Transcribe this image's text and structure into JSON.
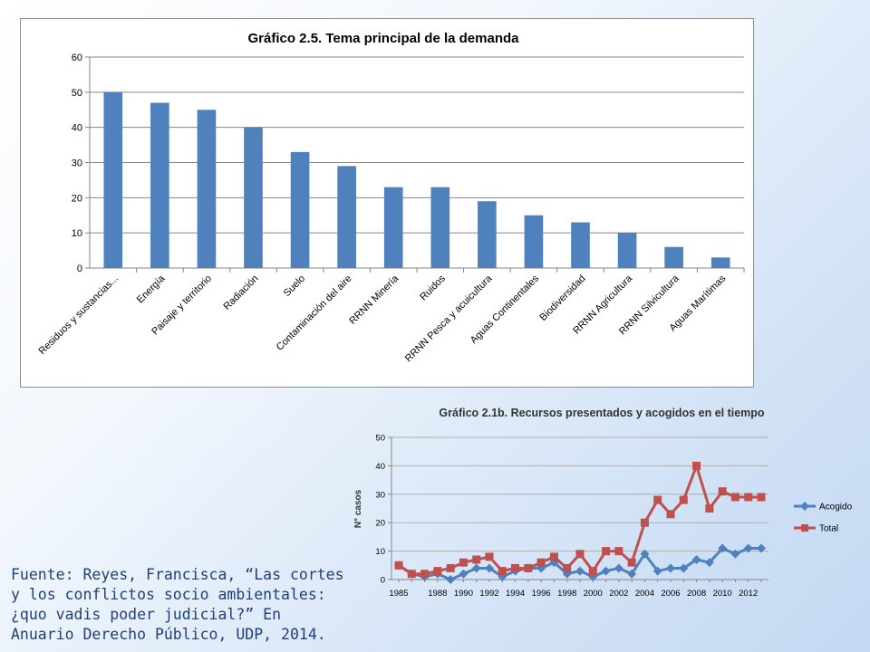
{
  "chart_data": [
    {
      "type": "bar",
      "title": "Gráfico 2.5. Tema principal de la demanda",
      "categories": [
        "Residuos y sustancias...",
        "Energía",
        "Paisaje y territorio",
        "Radiación",
        "Suelo",
        "Contaminación del aire",
        "RRNN Minería",
        "Ruidos",
        "RRNN Pesca y acuicultura",
        "Aguas Continentales",
        "Biodiversidad",
        "RRNN Agricultura",
        "RRNN Silvicultura",
        "Aguas Marítimas"
      ],
      "values": [
        50,
        47,
        45,
        40,
        33,
        29,
        23,
        23,
        19,
        15,
        13,
        10,
        6,
        3
      ],
      "ylim": [
        0,
        60
      ],
      "yticks": [
        0,
        10,
        20,
        30,
        40,
        50,
        60
      ],
      "color": "#4f81bd",
      "grid": true,
      "legend": "none"
    },
    {
      "type": "line",
      "title": "Gráfico 2.1b. Recursos presentados y acogidos en el tiempo",
      "ylabel": "N° casos",
      "x": [
        1985,
        1986,
        1987,
        1988,
        1989,
        1990,
        1991,
        1992,
        1993,
        1994,
        1995,
        1996,
        1997,
        1998,
        1999,
        2000,
        2001,
        2002,
        2003,
        2004,
        2005,
        2006,
        2007,
        2008,
        2009,
        2010,
        2011,
        2012,
        2013
      ],
      "xticks": [
        "1985",
        "1988",
        "1990",
        "1992",
        "1994",
        "1996",
        "1998",
        "2000",
        "2002",
        "2004",
        "2006",
        "2008",
        "2010",
        "2012"
      ],
      "ylim": [
        0,
        50
      ],
      "yticks": [
        0,
        10,
        20,
        30,
        40,
        50
      ],
      "grid": true,
      "legend": "right",
      "series": [
        {
          "name": "Acogido",
          "color": "#4f81bd",
          "marker": "diamond",
          "values": [
            5,
            2,
            1,
            2,
            0,
            2,
            4,
            4,
            1,
            3,
            4,
            4,
            6,
            2,
            3,
            1,
            3,
            4,
            2,
            9,
            3,
            4,
            4,
            7,
            6,
            11,
            9,
            11,
            11
          ]
        },
        {
          "name": "Total",
          "color": "#c0504d",
          "marker": "square",
          "values": [
            5,
            2,
            2,
            3,
            4,
            6,
            7,
            8,
            3,
            4,
            4,
            6,
            8,
            4,
            9,
            3,
            10,
            10,
            6,
            20,
            28,
            23,
            28,
            40,
            25,
            31,
            29,
            29,
            29
          ]
        }
      ]
    }
  ],
  "source_note": "Fuente: Reyes, Francisca, “Las cortes y los conflictos socio ambientales: ¿quo vadis poder judicial?” En Anuario Derecho Público, UDP, 2014."
}
